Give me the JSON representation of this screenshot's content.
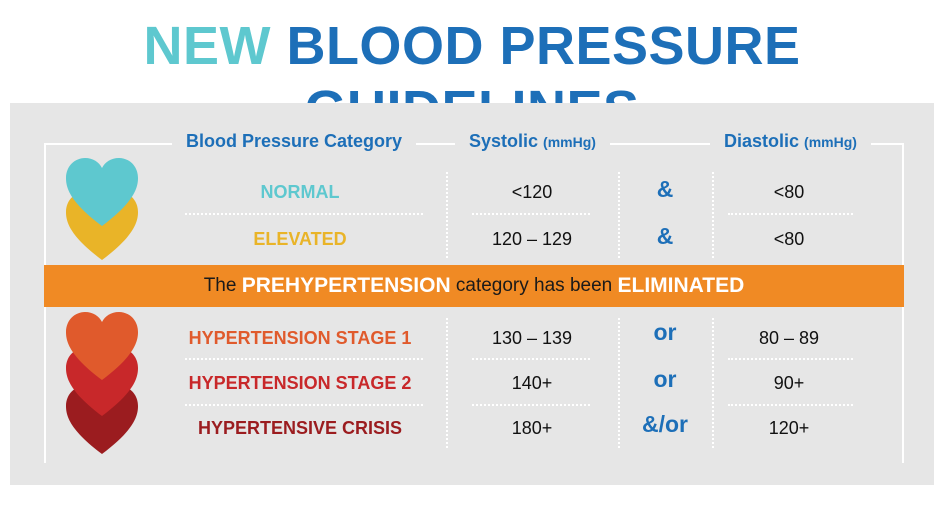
{
  "title": {
    "part1": "NEW",
    "part2": "BLOOD PRESSURE GUIDELINES"
  },
  "headers": {
    "category": "Blood Pressure Category",
    "systolic": "Systolic",
    "systolic_unit": "(mmHg)",
    "diastolic": "Diastolic",
    "diastolic_unit": "(mmHg)"
  },
  "rows": [
    {
      "category": "NORMAL",
      "systolic": "<120",
      "connector": "&",
      "diastolic": "<80",
      "color": "#5ec8cf"
    },
    {
      "category": "ELEVATED",
      "systolic": "120 – 129",
      "connector": "&",
      "diastolic": "<80",
      "color": "#e9b428"
    },
    {
      "category": "HYPERTENSION STAGE 1",
      "systolic": "130 – 139",
      "connector": "or",
      "diastolic": "80 – 89",
      "color": "#e05a2c"
    },
    {
      "category": "HYPERTENSION STAGE 2",
      "systolic": "140+",
      "connector": "or",
      "diastolic": "90+",
      "color": "#c8282a"
    },
    {
      "category": "HYPERTENSIVE CRISIS",
      "systolic": "180+",
      "connector": "&/or",
      "diastolic": "120+",
      "color": "#9b1c1f"
    }
  ],
  "banner": {
    "text1": "The ",
    "highlight1": "PREHYPERTENSION",
    "text2": " category has been ",
    "highlight2": "ELIMINATED",
    "color": "#f08a24"
  },
  "icons": {
    "top_hearts": [
      "#5ec8cf",
      "#e9b428"
    ],
    "bottom_hearts": [
      "#e05a2c",
      "#c8282a",
      "#9b1c1f"
    ]
  }
}
